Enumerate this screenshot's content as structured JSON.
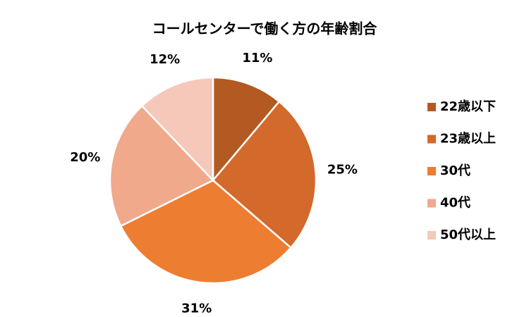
{
  "chart_data": {
    "type": "pie",
    "title": "コールセンターで働く方の年齢割合",
    "categories": [
      "22歳以下",
      "23歳以上",
      "30代",
      "40代",
      "50代以上"
    ],
    "values": [
      11,
      25,
      31,
      20,
      12
    ],
    "value_labels": [
      "11%",
      "25%",
      "31%",
      "20%",
      "12%"
    ],
    "colors": [
      "#b35a22",
      "#d3692b",
      "#ed7d31",
      "#f0a98b",
      "#f5c8b9"
    ],
    "legend": "right"
  }
}
